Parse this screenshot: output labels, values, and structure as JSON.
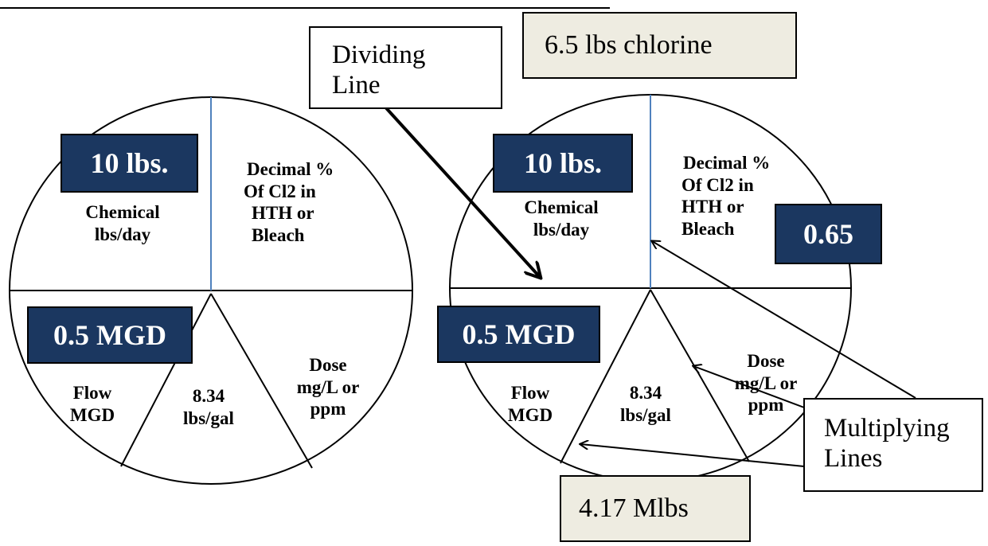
{
  "top_rule": true,
  "colors": {
    "navy": "#1b3760",
    "beige": "#eeece1",
    "divider": "#4f81bd"
  },
  "left_pie": {
    "chemical_value": "10 lbs.",
    "chemical_label": [
      "Chemical",
      "lbs/day"
    ],
    "decimal_label": [
      "Decimal %",
      "Of Cl2 in",
      "HTH or",
      "Bleach"
    ],
    "flow_value": "0.5 MGD",
    "flow_label": [
      "Flow",
      "MGD"
    ],
    "constant_label": [
      "8.34",
      "lbs/gal"
    ],
    "dose_label": [
      "Dose",
      "mg/L or",
      "ppm"
    ]
  },
  "right_pie": {
    "chemical_value": "10 lbs.",
    "chemical_label": [
      "Chemical",
      "lbs/day"
    ],
    "decimal_label": [
      "Decimal %",
      "Of Cl2 in",
      "HTH or",
      "Bleach"
    ],
    "decimal_value": "0.65",
    "flow_value": "0.5 MGD",
    "flow_label": [
      "Flow",
      "MGD"
    ],
    "constant_label": [
      "8.34",
      "lbs/gal"
    ],
    "dose_label": [
      "Dose",
      "mg/L or",
      "ppm"
    ]
  },
  "result_chlorine": "6.5 lbs chlorine",
  "result_mlbs": "4.17 Mlbs",
  "callout_dividing": [
    "Dividing",
    "Line"
  ],
  "callout_multiplying": [
    "Multiplying",
    "Lines"
  ]
}
